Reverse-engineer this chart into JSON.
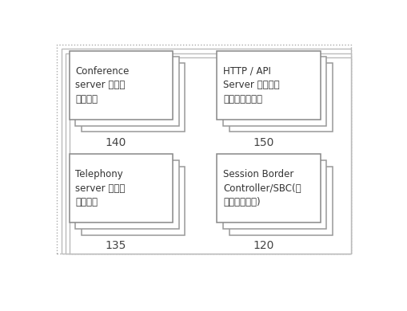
{
  "background_color": "#ffffff",
  "outer_frame_edge_color": "#aaaaaa",
  "outer_frame_fill": "#ffffff",
  "box_edge_color": "#555555",
  "box_fill_color": "#ffffff",
  "box_shadow_color": "#cccccc",
  "label_color": "#333333",
  "number_color": "#444444",
  "boxes": [
    {
      "label": "Conference\nserver （会议\n服务器）",
      "number": "140",
      "col": 0,
      "row": 0
    },
    {
      "label": "HTTP / API\nServer 网页和应\n用接口服务器）",
      "number": "150",
      "col": 1,
      "row": 0
    },
    {
      "label": "Telephony\nserver （电话\n服务器）",
      "number": "135",
      "col": 0,
      "row": 1
    },
    {
      "label": "Session Border\nController/SBC(会\n话边界控制器)",
      "number": "120",
      "col": 1,
      "row": 1
    }
  ]
}
